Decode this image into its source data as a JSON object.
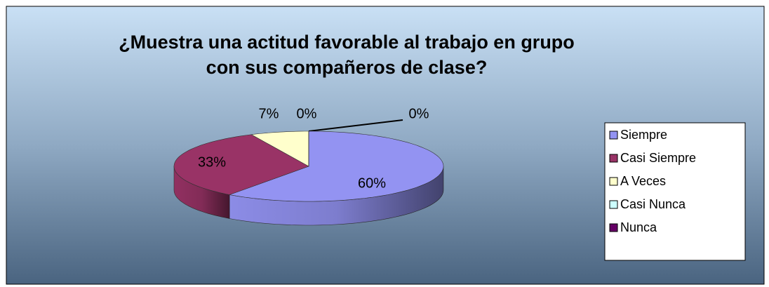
{
  "chart_data": {
    "type": "pie",
    "title": "¿Muestra una actitud favorable al trabajo en grupo con sus compañeros de clase?",
    "categories": [
      "Siempre",
      "Casi Siempre",
      "A Veces",
      "Casi Nunca",
      "Nunca"
    ],
    "values": [
      60,
      33,
      7,
      0,
      0
    ],
    "value_labels": [
      "60%",
      "33%",
      "7%",
      "0%",
      "0%"
    ],
    "colors": [
      "#9393f2",
      "#993366",
      "#ffffcc",
      "#ccffff",
      "#660066"
    ],
    "legend": "right"
  }
}
